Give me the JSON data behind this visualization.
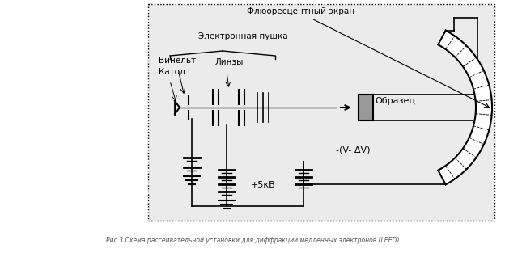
{
  "caption": "Рис.3 Схема рассеивательной установки для диффракции медленных электронов (LEED)",
  "labels": {
    "fluorescent_screen": "Флюоресцентный экран",
    "electron_gun": "Электронная пушка",
    "wehnelt": "Винельт",
    "cathode": "Катод",
    "lenses": "Линзы",
    "sample": "Образец",
    "voltage1": "+5кВ",
    "voltage2": "-(V- ΔV)"
  },
  "text_color": "#000000"
}
